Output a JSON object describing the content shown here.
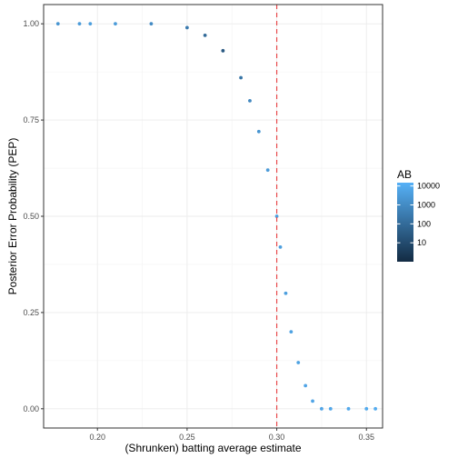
{
  "chart_data": {
    "type": "scatter",
    "xlabel": "(Shrunken) batting average estimate",
    "ylabel": "Posterior Error Probability (PEP)",
    "xlim": [
      0.17,
      0.359
    ],
    "ylim": [
      -0.05,
      1.05
    ],
    "x_ticks": [
      0.2,
      0.25,
      0.3,
      0.35
    ],
    "x_tick_labels": [
      "0.20",
      "0.25",
      "0.30",
      "0.35"
    ],
    "y_ticks": [
      0.0,
      0.25,
      0.5,
      0.75,
      1.0
    ],
    "y_tick_labels": [
      "0.00",
      "0.25",
      "0.50",
      "0.75",
      "1.00"
    ],
    "grid": true,
    "vline": {
      "x": 0.3,
      "color": "#e8484a",
      "style": "dashed"
    },
    "color_scale": {
      "title": "AB",
      "log": true,
      "range": [
        1,
        15000
      ],
      "low_color": "#132b43",
      "high_color": "#56b1f7",
      "breaks": [
        10,
        100,
        1000,
        10000
      ],
      "break_labels": [
        "10",
        "100",
        "1000",
        "10000"
      ]
    },
    "legend_position": "right",
    "points_sample": [
      {
        "x": 0.178,
        "y": 1.0,
        "ab": 2000
      },
      {
        "x": 0.19,
        "y": 1.0,
        "ab": 3000
      },
      {
        "x": 0.196,
        "y": 1.0,
        "ab": 4000
      },
      {
        "x": 0.21,
        "y": 1.0,
        "ab": 3000
      },
      {
        "x": 0.23,
        "y": 1.0,
        "ab": 1000
      },
      {
        "x": 0.25,
        "y": 0.99,
        "ab": 300
      },
      {
        "x": 0.26,
        "y": 0.97,
        "ab": 100
      },
      {
        "x": 0.27,
        "y": 0.93,
        "ab": 30
      },
      {
        "x": 0.28,
        "y": 0.86,
        "ab": 200
      },
      {
        "x": 0.285,
        "y": 0.8,
        "ab": 800
      },
      {
        "x": 0.29,
        "y": 0.72,
        "ab": 2000
      },
      {
        "x": 0.295,
        "y": 0.62,
        "ab": 3000
      },
      {
        "x": 0.3,
        "y": 0.5,
        "ab": 4000
      },
      {
        "x": 0.302,
        "y": 0.42,
        "ab": 4000
      },
      {
        "x": 0.305,
        "y": 0.3,
        "ab": 4000
      },
      {
        "x": 0.308,
        "y": 0.2,
        "ab": 5000
      },
      {
        "x": 0.312,
        "y": 0.12,
        "ab": 5000
      },
      {
        "x": 0.316,
        "y": 0.06,
        "ab": 6000
      },
      {
        "x": 0.32,
        "y": 0.02,
        "ab": 6000
      },
      {
        "x": 0.325,
        "y": 0.0,
        "ab": 6000
      },
      {
        "x": 0.33,
        "y": 0.0,
        "ab": 7000
      },
      {
        "x": 0.34,
        "y": 0.0,
        "ab": 8000
      },
      {
        "x": 0.35,
        "y": 0.0,
        "ab": 9000
      },
      {
        "x": 0.355,
        "y": 0.0,
        "ab": 10000
      }
    ]
  }
}
